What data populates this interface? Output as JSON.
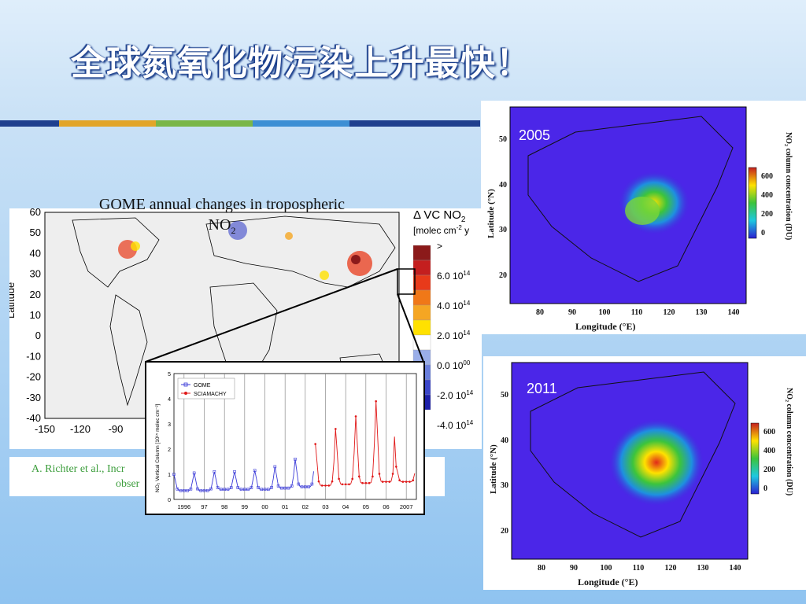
{
  "slide": {
    "title": "全球氮氧化物污染上升最快！",
    "accent_colors": [
      "#1f3f8e",
      "#e2a52a",
      "#7ab648",
      "#3d8fd4"
    ]
  },
  "gome_map": {
    "title_line1": "GOME annual changes in tropospheric",
    "title_line2": "NO",
    "title_sub": "2",
    "ylabel": "Latitude",
    "y_ticks": [
      "60",
      "50",
      "40",
      "30",
      "20",
      "10",
      "0",
      "-10",
      "-20",
      "-30",
      "-40"
    ],
    "x_ticks": [
      "-150",
      "-120",
      "-90"
    ],
    "legend_title": "Δ VC NO",
    "legend_title_sub": "2",
    "legend_units": "[molec cm",
    "legend_units_sup": "-2",
    "legend_units_tail": " y",
    "legend_labels": [
      ">",
      "6.0 10",
      "4.0 10",
      "2.0 10",
      "0.0 10",
      "-2.0 10",
      "-4.0 10",
      "<"
    ],
    "legend_exps": [
      "",
      "14",
      "14",
      "14",
      "00",
      "14",
      "14",
      ""
    ],
    "legend_colors": [
      "#8b1a1a",
      "#c41f1f",
      "#e83a1a",
      "#f07818",
      "#f5a623",
      "#ffe100",
      "#ffffff",
      "#9aaee8",
      "#6a7fdc",
      "#3b46c9",
      "#1c1fa8"
    ]
  },
  "citation": {
    "line1": "A. Richter et al., Incr",
    "line2": "obser"
  },
  "timeseries": {
    "ylabel": "NO₂ Vertical Column [10¹⁵ molec cm⁻²]",
    "y_ticks": [
      "0",
      "1",
      "2",
      "3",
      "4",
      "5"
    ],
    "x_ticks": [
      "1996",
      "97",
      "98",
      "99",
      "00",
      "01",
      "02",
      "03",
      "04",
      "05",
      "06",
      "2007"
    ],
    "legend": [
      "GOME",
      "SCIAMACHY"
    ],
    "colors": {
      "gome": "#3a3ad8",
      "sciamachy": "#e01818"
    },
    "chart_data": {
      "type": "line",
      "ylim": [
        0,
        5
      ],
      "series": [
        {
          "name": "GOME",
          "years": [
            1996,
            1997,
            1998,
            1999,
            2000,
            2001,
            2002
          ],
          "peak": [
            1.0,
            1.05,
            1.1,
            1.1,
            1.15,
            1.3,
            1.6
          ],
          "trough": [
            0.35,
            0.35,
            0.4,
            0.4,
            0.4,
            0.45,
            0.5
          ]
        },
        {
          "name": "SCIAMACHY",
          "years": [
            2003,
            2004,
            2005,
            2006,
            2007
          ],
          "peak": [
            2.2,
            2.8,
            3.3,
            3.9,
            1.3
          ],
          "trough": [
            0.55,
            0.6,
            0.65,
            0.7,
            0.7
          ]
        }
      ]
    }
  },
  "china_2005": {
    "year": "2005",
    "ylabel": "Latitude (°N)",
    "xlabel": "Longitude (°E)",
    "cbar_label": "NO₂ column concentration (DU)",
    "y_ticks": [
      "50",
      "40",
      "30",
      "20"
    ],
    "x_ticks": [
      "80",
      "90",
      "100",
      "110",
      "120",
      "130",
      "140"
    ],
    "cbar_ticks": [
      "600",
      "400",
      "200",
      "0"
    ]
  },
  "china_2011": {
    "year": "2011",
    "ylabel": "Latitude (°N)",
    "xlabel": "Longitude (°E)",
    "cbar_label": "NO₂ column concentration (DU)",
    "y_ticks": [
      "50",
      "40",
      "30",
      "20"
    ],
    "x_ticks": [
      "80",
      "90",
      "100",
      "110",
      "120",
      "130",
      "140"
    ],
    "cbar_ticks": [
      "600",
      "400",
      "200",
      "0"
    ]
  }
}
